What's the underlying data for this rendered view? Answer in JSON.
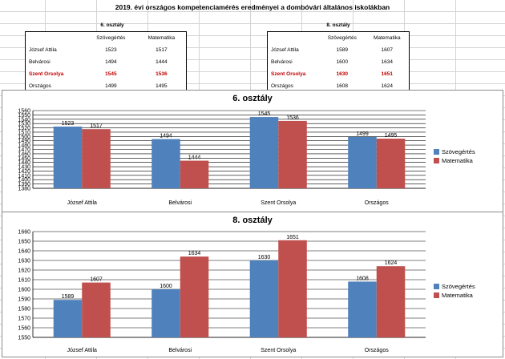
{
  "page": {
    "title": "2019. évi országos kompetenciamérés eredményei a dombóvári általános iskolákban"
  },
  "tables": [
    {
      "caption": "6. osztály",
      "headers": [
        "",
        "Szövegértés",
        "Matematika"
      ],
      "rows": [
        {
          "name": "József Attila",
          "szoveg": "1523",
          "matek": "1517",
          "highlight": false
        },
        {
          "name": "Belvárosi",
          "szoveg": "1494",
          "matek": "1444",
          "highlight": false
        },
        {
          "name": "Szent Orsolya",
          "szoveg": "1545",
          "matek": "1536",
          "highlight": true
        },
        {
          "name": "Országos",
          "szoveg": "1499",
          "matek": "1495",
          "highlight": false
        }
      ]
    },
    {
      "caption": "8. osztály",
      "headers": [
        "",
        "Szövegértés",
        "Matematika"
      ],
      "rows": [
        {
          "name": "József Attila",
          "szoveg": "1589",
          "matek": "1607",
          "highlight": false
        },
        {
          "name": "Belvárosi",
          "szoveg": "1600",
          "matek": "1634",
          "highlight": false
        },
        {
          "name": "Szent Orsolya",
          "szoveg": "1630",
          "matek": "1651",
          "highlight": true
        },
        {
          "name": "Országos",
          "szoveg": "1608",
          "matek": "1624",
          "highlight": false
        }
      ]
    }
  ],
  "colors": {
    "szoveg": "#4f81bd",
    "matek": "#c0504d",
    "highlight_text": "#c00000"
  },
  "chart_data": [
    {
      "type": "bar",
      "title": "6. osztály",
      "categories": [
        "József Attila",
        "Belvárosi",
        "Szent Orsolya",
        "Országos"
      ],
      "series": [
        {
          "name": "Szövegértés",
          "values": [
            1523,
            1494,
            1545,
            1499
          ]
        },
        {
          "name": "Matematika",
          "values": [
            1517,
            1444,
            1536,
            1495
          ]
        }
      ],
      "ylim": [
        1380,
        1560
      ],
      "ytick_step": 10,
      "legend": "right",
      "grid": true
    },
    {
      "type": "bar",
      "title": "8. osztály",
      "categories": [
        "József Attila",
        "Belvárosi",
        "Szent Orsolya",
        "Országos"
      ],
      "series": [
        {
          "name": "Szövegértés",
          "values": [
            1589,
            1600,
            1630,
            1608
          ]
        },
        {
          "name": "Matematika",
          "values": [
            1607,
            1634,
            1651,
            1624
          ]
        }
      ],
      "ylim": [
        1550,
        1660
      ],
      "ytick_step": 10,
      "legend": "right",
      "grid": true
    }
  ]
}
